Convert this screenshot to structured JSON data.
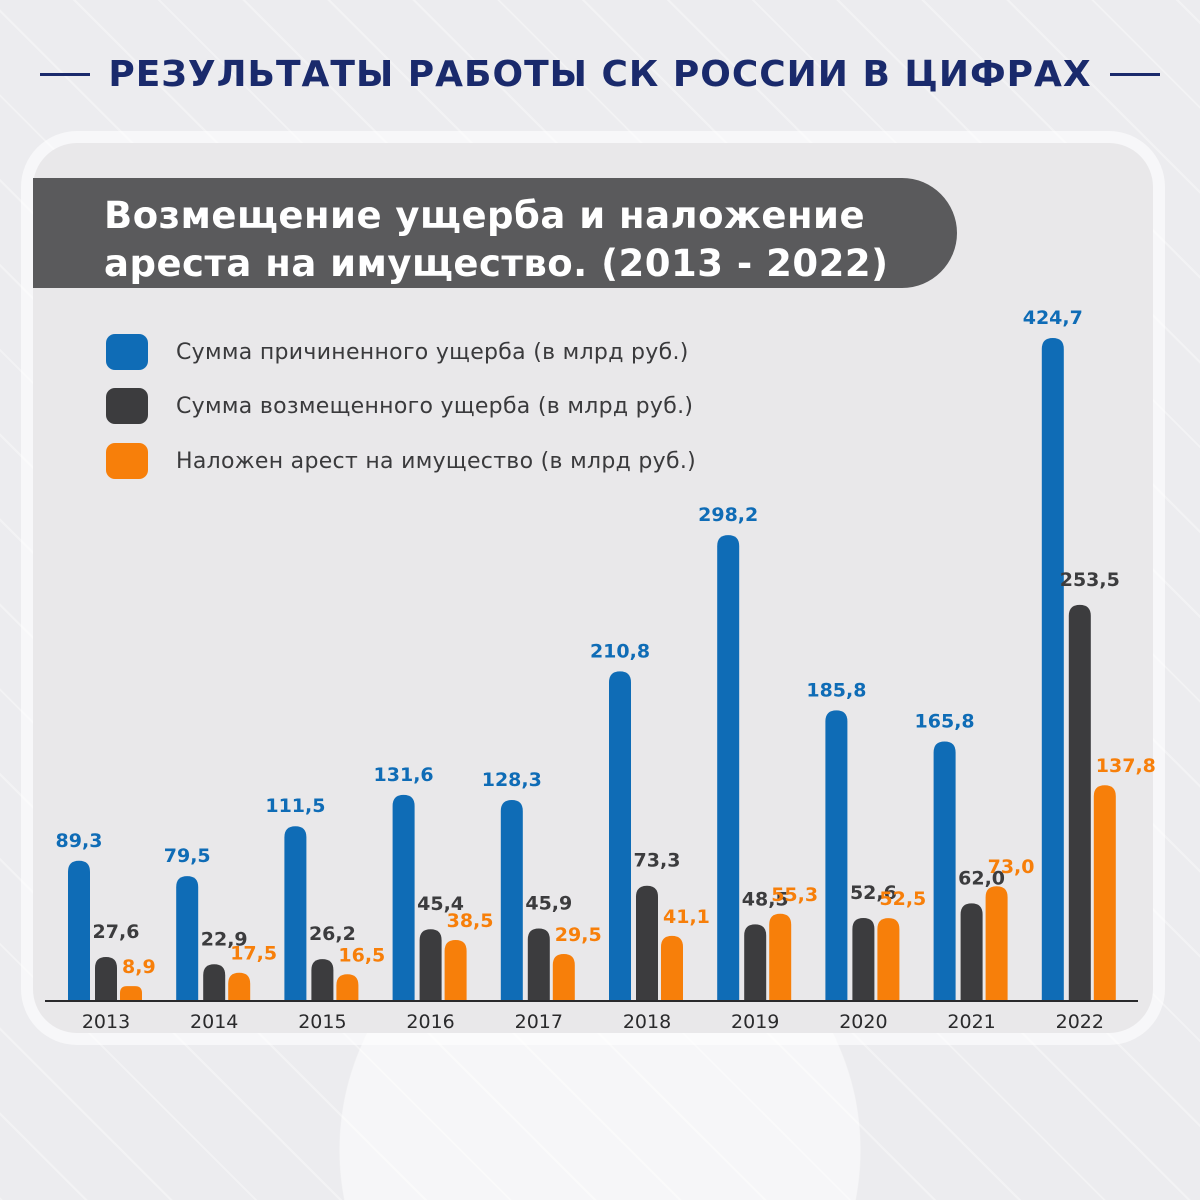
{
  "header": {
    "title": "РЕЗУЛЬТАТЫ РАБОТЫ СК РОССИИ В ЦИФРАХ"
  },
  "colors": {
    "blue": "#0f6cb6",
    "dark": "#3c3c3e",
    "orange": "#f77f0a",
    "navy": "#1a2a6c"
  },
  "chart_data": {
    "type": "bar",
    "title": "Возмещение ущерба и наложение ареста на имущество. (2013 - 2022)",
    "xlabel": "",
    "ylabel": "",
    "ylim": [
      0,
      424.7
    ],
    "legend_position": "top-left",
    "grid": false,
    "categories": [
      "2013",
      "2014",
      "2015",
      "2016",
      "2017",
      "2018",
      "2019",
      "2020",
      "2021",
      "2022"
    ],
    "series": [
      {
        "name": "Сумма причиненного ущерба (в млрд руб.)",
        "color": "#0f6cb6",
        "values": [
          89.3,
          79.5,
          111.5,
          131.6,
          128.3,
          210.8,
          298.2,
          185.8,
          165.8,
          424.7
        ],
        "labels": [
          "89,3",
          "79,5",
          "111,5",
          "131,6",
          "128,3",
          "210,8",
          "298,2",
          "185,8",
          "165,8",
          "424,7"
        ]
      },
      {
        "name": "Сумма возмещенного ущерба (в млрд руб.)",
        "color": "#3c3c3e",
        "values": [
          27.6,
          22.9,
          26.2,
          45.4,
          45.9,
          73.3,
          48.5,
          52.6,
          62.0,
          253.5
        ],
        "labels": [
          "27,6",
          "22,9",
          "26,2",
          "45,4",
          "45,9",
          "73,3",
          "48,5",
          "52,6",
          "62,0",
          "253,5"
        ]
      },
      {
        "name": "Наложен арест на имущество (в млрд руб.)",
        "color": "#f77f0a",
        "values": [
          8.9,
          17.5,
          16.5,
          38.5,
          29.5,
          41.1,
          55.3,
          52.5,
          73.0,
          137.8
        ],
        "labels": [
          "8,9",
          "17,5",
          "16,5",
          "38,5",
          "29,5",
          "41,1",
          "55,3",
          "52,5",
          "73,0",
          "137,8"
        ]
      }
    ]
  }
}
